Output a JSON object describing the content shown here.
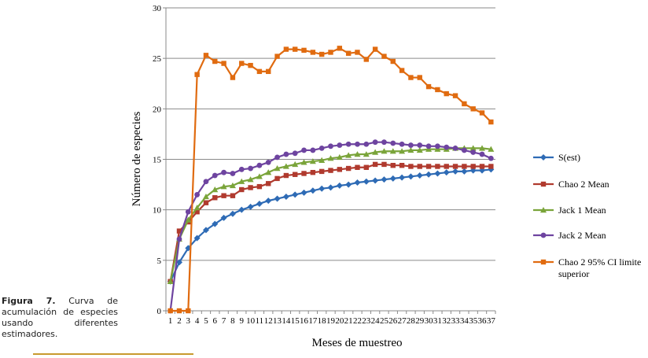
{
  "caption": {
    "label": "Figura 7.",
    "text": "Curva de acumulación de especies usando diferentes estimadores."
  },
  "chart_data": {
    "type": "line",
    "xlabel": "Meses de muestreo",
    "ylabel": "Número de especies",
    "ylim": [
      0,
      30
    ],
    "yticks": [
      0,
      5,
      10,
      15,
      20,
      25,
      30
    ],
    "grid": true,
    "legend_position": "right",
    "categories": [
      "1",
      "2",
      "3",
      "4",
      "5",
      "6",
      "7",
      "8",
      "9",
      "10",
      "11",
      "12",
      "13",
      "14",
      "15",
      "16",
      "17",
      "18",
      "19",
      "20",
      "21",
      "22",
      "23",
      "24",
      "25",
      "26",
      "27",
      "28",
      "29",
      "30",
      "31",
      "32",
      "33",
      "34",
      "35",
      "36",
      "37"
    ],
    "series": [
      {
        "name": "S(est)",
        "color": "#2e6bb5",
        "marker": "diamond",
        "values": [
          2.9,
          4.8,
          6.2,
          7.2,
          8.0,
          8.6,
          9.2,
          9.6,
          10.0,
          10.3,
          10.6,
          10.9,
          11.1,
          11.3,
          11.5,
          11.7,
          11.9,
          12.1,
          12.2,
          12.4,
          12.5,
          12.7,
          12.8,
          12.9,
          13.0,
          13.1,
          13.2,
          13.3,
          13.4,
          13.5,
          13.6,
          13.7,
          13.8,
          13.8,
          13.9,
          13.9,
          14.0
        ]
      },
      {
        "name": "Chao 2 Mean",
        "color": "#b03a2e",
        "marker": "square",
        "values": [
          2.9,
          7.9,
          8.8,
          9.8,
          10.7,
          11.2,
          11.4,
          11.4,
          12.0,
          12.2,
          12.3,
          12.6,
          13.1,
          13.4,
          13.5,
          13.6,
          13.7,
          13.8,
          13.9,
          14.0,
          14.1,
          14.2,
          14.2,
          14.5,
          14.5,
          14.4,
          14.4,
          14.3,
          14.3,
          14.3,
          14.3,
          14.3,
          14.3,
          14.3,
          14.3,
          14.3,
          14.3
        ]
      },
      {
        "name": "Jack 1 Mean",
        "color": "#7aa43a",
        "marker": "triangle",
        "values": [
          2.9,
          7.1,
          9.0,
          10.2,
          11.3,
          12.0,
          12.3,
          12.4,
          12.8,
          13.0,
          13.3,
          13.7,
          14.1,
          14.3,
          14.5,
          14.7,
          14.8,
          14.9,
          15.1,
          15.2,
          15.4,
          15.5,
          15.5,
          15.7,
          15.8,
          15.8,
          15.8,
          15.9,
          15.9,
          16.0,
          16.0,
          16.0,
          16.1,
          16.1,
          16.1,
          16.1,
          16.0
        ]
      },
      {
        "name": "Jack 2 Mean",
        "color": "#6e44a0",
        "marker": "circle",
        "values": [
          0,
          7.1,
          9.8,
          11.5,
          12.8,
          13.4,
          13.7,
          13.6,
          14.0,
          14.1,
          14.4,
          14.7,
          15.2,
          15.5,
          15.6,
          15.9,
          15.9,
          16.1,
          16.3,
          16.4,
          16.5,
          16.5,
          16.5,
          16.7,
          16.7,
          16.6,
          16.5,
          16.4,
          16.4,
          16.3,
          16.3,
          16.2,
          16.1,
          15.9,
          15.7,
          15.5,
          15.1
        ]
      },
      {
        "name": "Chao 2 95% CI limite superior",
        "color": "#e06b10",
        "marker": "square",
        "values": [
          0,
          0,
          0,
          23.4,
          25.3,
          24.7,
          24.5,
          23.1,
          24.5,
          24.3,
          23.7,
          23.7,
          25.2,
          25.9,
          25.9,
          25.8,
          25.6,
          25.4,
          25.6,
          26.0,
          25.5,
          25.6,
          24.9,
          25.9,
          25.2,
          24.7,
          23.8,
          23.1,
          23.1,
          22.2,
          21.9,
          21.5,
          21.3,
          20.5,
          20.0,
          19.6,
          18.7
        ]
      }
    ]
  }
}
